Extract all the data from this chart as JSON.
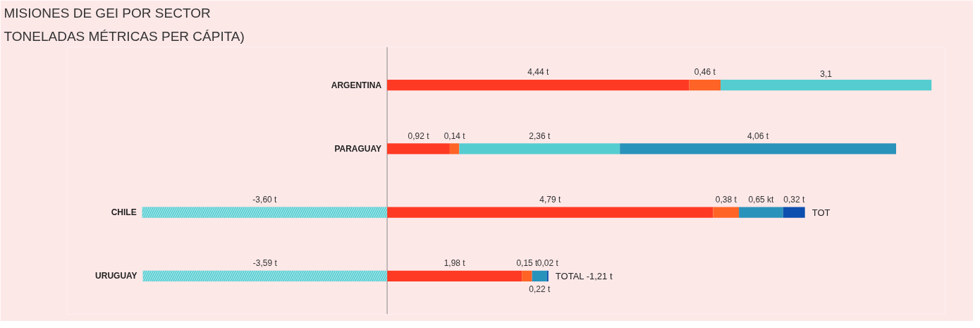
{
  "chart_data": {
    "type": "bar",
    "orientation": "horizontal",
    "stacked": true,
    "title": "MISIONES DE GEI POR SECTOR",
    "subtitle": "TONELADAS MÉTRICAS PER CÁPITA)",
    "categories": [
      "ARGENTINA",
      "PARAGUAY",
      "CHILE",
      "URUGUAY"
    ],
    "series": [
      {
        "color": "#ff3a24",
        "values": [
          4.44,
          0.92,
          4.79,
          1.98
        ],
        "value_labels": [
          "4,44 t",
          "0,92 t",
          "4,79 t",
          "1,98 t"
        ]
      },
      {
        "color": "#ff6426",
        "values": [
          0.46,
          0.14,
          0.38,
          0.15
        ],
        "value_labels": [
          "0,46 t",
          "0,14 t",
          "0,38 t",
          "0,15 t"
        ]
      },
      {
        "color": "#55cdd0",
        "values": [
          3.1,
          2.36,
          null,
          null
        ],
        "value_labels": [
          "3,1",
          "2,36 t",
          null,
          null
        ]
      },
      {
        "color": "#2a93bb",
        "values": [
          null,
          4.06,
          0.65,
          0.22
        ],
        "value_labels": [
          null,
          "4,06 t",
          "0,65 kt",
          "0,22 t"
        ]
      },
      {
        "color": "#0d4fae",
        "values": [
          null,
          null,
          0.32,
          0.02
        ],
        "value_labels": [
          null,
          null,
          "0,32 t",
          "0,02 t"
        ]
      },
      {
        "color": "#55cdd0",
        "values": [
          null,
          null,
          -3.6,
          -3.59
        ],
        "value_labels": [
          null,
          null,
          "-3,60 t",
          "-3,59 t"
        ]
      }
    ],
    "annotations": [
      {
        "text": "TOT",
        "x": 6.14,
        "y": "CHILE"
      },
      {
        "text": "TOTAL  -1,21 t",
        "x": 2.37,
        "y": "URUGUAY"
      }
    ],
    "xlim": [
      -4.7,
      8.2
    ],
    "tick_labels": "y",
    "grid": false
  }
}
